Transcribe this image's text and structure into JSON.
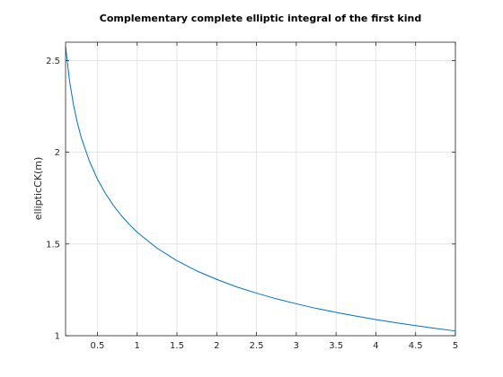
{
  "chart_data": {
    "type": "line",
    "title": "Complementary complete elliptic integral of the first kind",
    "xlabel": "",
    "ylabel": "ellipticCK(m)",
    "xlim": [
      0.1,
      5
    ],
    "ylim": [
      1,
      2.6
    ],
    "x_ticks": [
      0.5,
      1,
      1.5,
      2,
      2.5,
      3,
      3.5,
      4,
      4.5,
      5
    ],
    "x_tick_labels": [
      "0.5",
      "1",
      "1.5",
      "2",
      "2.5",
      "3",
      "3.5",
      "4",
      "4.5",
      "5"
    ],
    "y_ticks": [
      1,
      1.5,
      2,
      2.5
    ],
    "y_tick_labels": [
      "1",
      "1.5",
      "2",
      "2.5"
    ],
    "grid": true,
    "box": true,
    "series": [
      {
        "color": "#0072bd",
        "x": [
          0.1,
          0.15,
          0.2,
          0.25,
          0.3,
          0.4,
          0.5,
          0.6,
          0.7,
          0.8,
          0.9,
          1.0,
          1.25,
          1.5,
          1.75,
          2.0,
          2.25,
          2.5,
          2.75,
          3.0,
          3.25,
          3.5,
          3.75,
          4.0,
          4.25,
          4.5,
          4.75,
          5.0
        ],
        "values": [
          2.578,
          2.388,
          2.257,
          2.157,
          2.076,
          1.951,
          1.854,
          1.776,
          1.711,
          1.655,
          1.607,
          1.564,
          1.477,
          1.409,
          1.353,
          1.307,
          1.266,
          1.232,
          1.201,
          1.174,
          1.149,
          1.127,
          1.107,
          1.088,
          1.071,
          1.055,
          1.04,
          1.026
        ]
      }
    ]
  }
}
